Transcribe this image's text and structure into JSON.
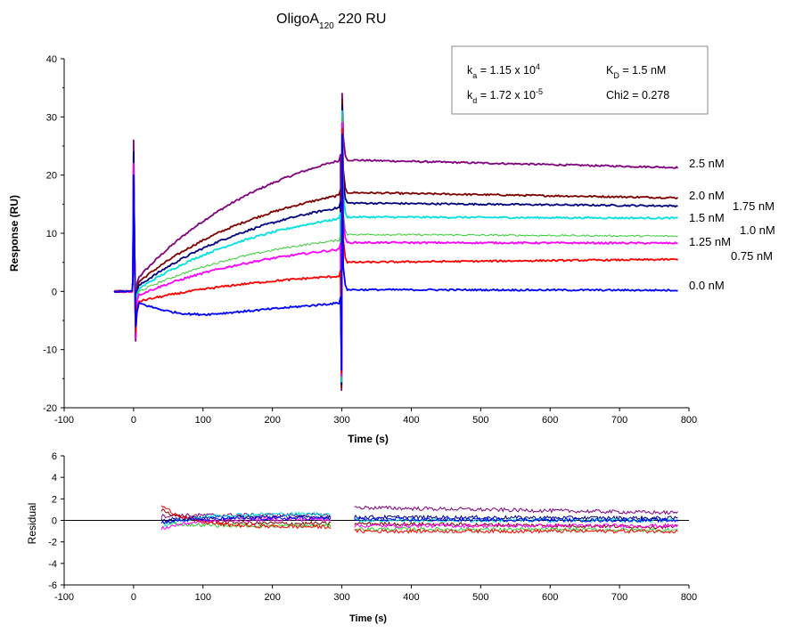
{
  "chart_data": [
    {
      "type": "line",
      "title_main": "OligoA",
      "title_sub": "120",
      "title_rest": " 220 RU",
      "xlabel": "Time (s)",
      "ylabel": "Response (RU)",
      "xlim": [
        -100,
        800
      ],
      "ylim": [
        -20,
        40
      ],
      "x_ticks": [
        "-100",
        "0",
        "100",
        "200",
        "300",
        "400",
        "500",
        "600",
        "700",
        "800"
      ],
      "y_ticks": [
        "-20",
        "-10",
        "0",
        "10",
        "20",
        "30",
        "40"
      ],
      "injection_end": 300,
      "fit_params": {
        "ka_prefix": "k",
        "ka_sub": "a",
        "ka_mid": " = 1.15 x 10",
        "ka_sup": "4",
        "kd_prefix": "k",
        "kd_sub": "d",
        "kd_mid": " = 1.72 x 10",
        "kd_sup": "-5",
        "KD_prefix": "K",
        "KD_sub": "D",
        "KD_rest": " = 1.5 nM",
        "chi2": "Chi2 = 0.278"
      },
      "series": [
        {
          "name": "2.5 nM",
          "color": "#800080",
          "assoc_start": 2.5,
          "assoc_end": 22.5,
          "dissoc_start": 22.6,
          "dissoc_end": 21.3
        },
        {
          "name": "2.0 nM",
          "color": "#800000",
          "assoc_start": 1.7,
          "assoc_end": 16.5,
          "dissoc_start": 17.0,
          "dissoc_end": 16.1
        },
        {
          "name": "1.75 nM",
          "color": "#000080",
          "assoc_start": 1.0,
          "assoc_end": 14.4,
          "dissoc_start": 15.2,
          "dissoc_end": 14.7
        },
        {
          "name": "1.5 nM",
          "color": "#00e0e0",
          "assoc_start": 0.5,
          "assoc_end": 12.5,
          "dissoc_start": 12.8,
          "dissoc_end": 12.6
        },
        {
          "name": "1.0 nM",
          "color": "#33cc33",
          "assoc_start": 0.0,
          "assoc_end": 8.8,
          "dissoc_start": 9.8,
          "dissoc_end": 9.5
        },
        {
          "name": "1.25 nM",
          "color": "#ff00ff",
          "assoc_start": -0.6,
          "assoc_end": 7.2,
          "dissoc_start": 8.4,
          "dissoc_end": 8.3
        },
        {
          "name": "0.75 nM",
          "color": "#ff0000",
          "assoc_start": -1.7,
          "assoc_end": 2.6,
          "dissoc_start": 5.0,
          "dissoc_end": 5.5
        },
        {
          "name": "0.0 nM",
          "color": "#0000ff",
          "assoc_start": -2.5,
          "assoc_end": -2.0,
          "dissoc_start": 0.3,
          "dissoc_end": 0.2
        }
      ]
    },
    {
      "type": "line",
      "xlabel": "Time (s)",
      "ylabel": "Residual",
      "xlim": [
        -100,
        800
      ],
      "ylim": [
        -6,
        6
      ],
      "x_ticks": [
        "-100",
        "0",
        "100",
        "200",
        "300",
        "400",
        "500",
        "600",
        "700",
        "800"
      ],
      "y_ticks": [
        "-6",
        "-4",
        "-2",
        "0",
        "2",
        "4",
        "6"
      ],
      "segments": [
        [
          40,
          285
        ],
        [
          318,
          785
        ]
      ],
      "series_offsets": [
        {
          "color": "#800080",
          "assoc": [
            0.4,
            0.5
          ],
          "dissoc": [
            1.2,
            0.7
          ]
        },
        {
          "color": "#800000",
          "assoc": [
            1.0,
            -0.3
          ],
          "dissoc": [
            -0.3,
            -0.6
          ]
        },
        {
          "color": "#000080",
          "assoc": [
            0.0,
            0.3
          ],
          "dissoc": [
            0.3,
            0.2
          ]
        },
        {
          "color": "#00e0e0",
          "assoc": [
            -0.6,
            0.6
          ],
          "dissoc": [
            0.0,
            0.0
          ]
        },
        {
          "color": "#33cc33",
          "assoc": [
            -0.2,
            -0.5
          ],
          "dissoc": [
            -0.8,
            -0.9
          ]
        },
        {
          "color": "#ff00ff",
          "assoc": [
            -0.8,
            0.1
          ],
          "dissoc": [
            -0.5,
            -0.5
          ]
        },
        {
          "color": "#ff0000",
          "assoc": [
            1.4,
            -0.6
          ],
          "dissoc": [
            -1.0,
            -1.0
          ]
        },
        {
          "color": "#0000ff",
          "assoc": [
            -0.2,
            0.2
          ],
          "dissoc": [
            0.1,
            0.0
          ]
        }
      ]
    }
  ]
}
